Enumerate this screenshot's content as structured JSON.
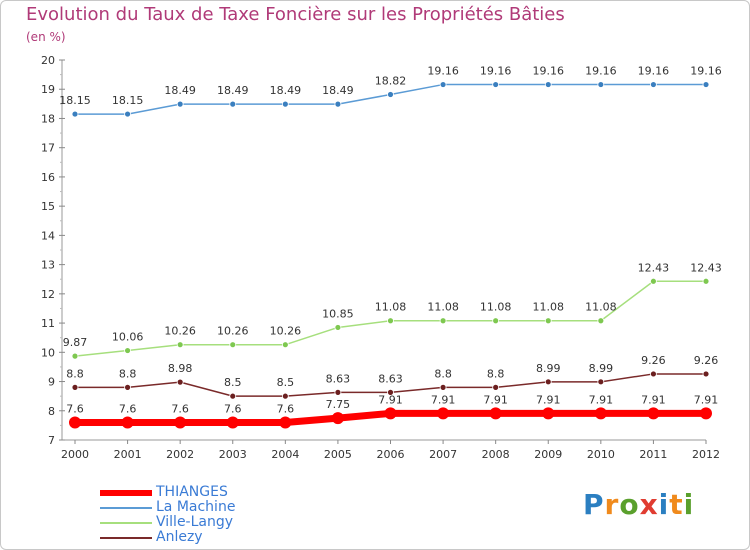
{
  "title": "Evolution du Taux de Taxe Foncière sur les Propriétés Bâties",
  "subtitle": "(en %)",
  "logo": {
    "text": "Proxiti",
    "letters": [
      {
        "ch": "P",
        "color": "#2b7fc1"
      },
      {
        "ch": "r",
        "color": "#f08a1c"
      },
      {
        "ch": "o",
        "color": "#5aa02c"
      },
      {
        "ch": "x",
        "color": "#e03c31"
      },
      {
        "ch": "i",
        "color": "#2b7fc1"
      },
      {
        "ch": "t",
        "color": "#f08a1c"
      },
      {
        "ch": "i",
        "color": "#5aa02c"
      }
    ]
  },
  "chart_data": {
    "type": "line",
    "categories": [
      "2000",
      "2001",
      "2002",
      "2003",
      "2004",
      "2005",
      "2006",
      "2007",
      "2008",
      "2009",
      "2010",
      "2011",
      "2012"
    ],
    "ylim": [
      7,
      20
    ],
    "yticks": [
      7,
      8,
      9,
      10,
      11,
      12,
      13,
      14,
      15,
      16,
      17,
      18,
      19,
      20
    ],
    "grid": false,
    "legend_position": "bottom-left",
    "series": [
      {
        "name": "THIANGES",
        "color": "#ff0000",
        "marker": "#ff0000",
        "width": 7,
        "r": 6,
        "values": [
          7.6,
          7.6,
          7.6,
          7.6,
          7.6,
          7.75,
          7.91,
          7.91,
          7.91,
          7.91,
          7.91,
          7.91,
          7.91
        ],
        "labels": [
          "7.6",
          "7.6",
          "7.6",
          "7.6",
          "7.6",
          "7.75",
          "7.91",
          "7.91",
          "7.91",
          "7.91",
          "7.91",
          "7.91",
          "7.91"
        ]
      },
      {
        "name": "La Machine",
        "color": "#5b9bd5",
        "marker": "#3a7fbf",
        "width": 1.5,
        "r": 3,
        "values": [
          18.15,
          18.15,
          18.49,
          18.49,
          18.49,
          18.49,
          18.82,
          19.16,
          19.16,
          19.16,
          19.16,
          19.16,
          19.16
        ],
        "labels": [
          "18.15",
          "18.15",
          "18.49",
          "18.49",
          "18.49",
          "18.49",
          "18.82",
          "19.16",
          "19.16",
          "19.16",
          "19.16",
          "19.16",
          "19.16"
        ]
      },
      {
        "name": "Ville-Langy",
        "color": "#a6df7d",
        "marker": "#7ec850",
        "width": 1.5,
        "r": 3,
        "values": [
          9.87,
          10.06,
          10.26,
          10.26,
          10.26,
          10.85,
          11.08,
          11.08,
          11.08,
          11.08,
          11.08,
          12.43,
          12.43
        ],
        "labels": [
          "9.87",
          "10.06",
          "10.26",
          "10.26",
          "10.26",
          "10.85",
          "11.08",
          "11.08",
          "11.08",
          "11.08",
          "11.08",
          "12.43",
          "12.43"
        ]
      },
      {
        "name": "Anlezy",
        "color": "#7a2a2a",
        "marker": "#6b1f1f",
        "width": 1.5,
        "r": 3,
        "values": [
          8.8,
          8.8,
          8.98,
          8.5,
          8.5,
          8.63,
          8.63,
          8.8,
          8.8,
          8.99,
          8.99,
          9.26,
          9.26
        ],
        "labels": [
          "8.8",
          "8.8",
          "8.98",
          "8.5",
          "8.5",
          "8.63",
          "8.63",
          "8.8",
          "8.8",
          "8.99",
          "8.99",
          "9.26",
          "9.26"
        ]
      }
    ]
  }
}
